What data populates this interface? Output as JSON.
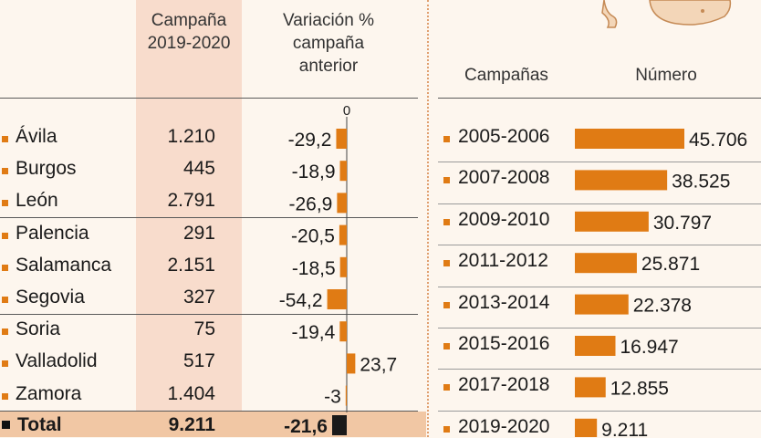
{
  "left": {
    "col_campaign_header": [
      "Campaña",
      "2019-2020"
    ],
    "col_variation_header": [
      "Variación %",
      "campaña",
      "anterior"
    ],
    "zero_label": "0",
    "rows": [
      {
        "province": "Ávila",
        "value": "1.210",
        "variation": "-29,2"
      },
      {
        "province": "Burgos",
        "value": "445",
        "variation": "-18,9"
      },
      {
        "province": "León",
        "value": "2.791",
        "variation": "-26,9"
      },
      {
        "province": "Palencia",
        "value": "291",
        "variation": "-20,5"
      },
      {
        "province": "Salamanca",
        "value": "2.151",
        "variation": "-18,5"
      },
      {
        "province": "Segovia",
        "value": "327",
        "variation": "-54,2"
      },
      {
        "province": "Soria",
        "value": "75",
        "variation": "-19,4"
      },
      {
        "province": "Valladolid",
        "value": "517",
        "variation": "23,7"
      },
      {
        "province": "Zamora",
        "value": "1.404",
        "variation": "-3"
      }
    ],
    "total": {
      "label": "Total",
      "value": "9.211",
      "variation": "-21,6"
    }
  },
  "right": {
    "col_campaigns_header": "Campañas",
    "col_number_header": "Número",
    "rows": [
      {
        "campaign": "2005-2006",
        "number": "45.706"
      },
      {
        "campaign": "2007-2008",
        "number": "38.525"
      },
      {
        "campaign": "2009-2010",
        "number": "30.797"
      },
      {
        "campaign": "2011-2012",
        "number": "25.871"
      },
      {
        "campaign": "2013-2014",
        "number": "22.378"
      },
      {
        "campaign": "2015-2016",
        "number": "16.947"
      },
      {
        "campaign": "2017-2018",
        "number": "12.855"
      },
      {
        "campaign": "2019-2020",
        "number": "9.211"
      }
    ]
  },
  "colors": {
    "bar": "#e07b14",
    "highlight": "#f8dccc",
    "total_band": "#f1c7a4",
    "total_bar": "#1a1a1a"
  },
  "chart_data": [
    {
      "type": "bar",
      "categories": [
        "Ávila",
        "Burgos",
        "León",
        "Palencia",
        "Salamanca",
        "Segovia",
        "Soria",
        "Valladolid",
        "Zamora",
        "Total"
      ],
      "series": [
        {
          "values": [
            -29.2,
            -18.9,
            -26.9,
            -20.5,
            -18.5,
            -54.2,
            -19.4,
            23.7,
            -3,
            -21.6
          ]
        }
      ],
      "xlabel": "",
      "ylabel": "",
      "orientation": "horizontal"
    },
    {
      "type": "bar",
      "categories": [
        "2005-2006",
        "2007-2008",
        "2009-2010",
        "2011-2012",
        "2013-2014",
        "2015-2016",
        "2017-2018",
        "2019-2020"
      ],
      "values": [
        45706,
        38525,
        30797,
        25871,
        22378,
        16947,
        12855,
        9211
      ],
      "xlabel": "",
      "ylabel": "",
      "orientation": "horizontal"
    }
  ]
}
